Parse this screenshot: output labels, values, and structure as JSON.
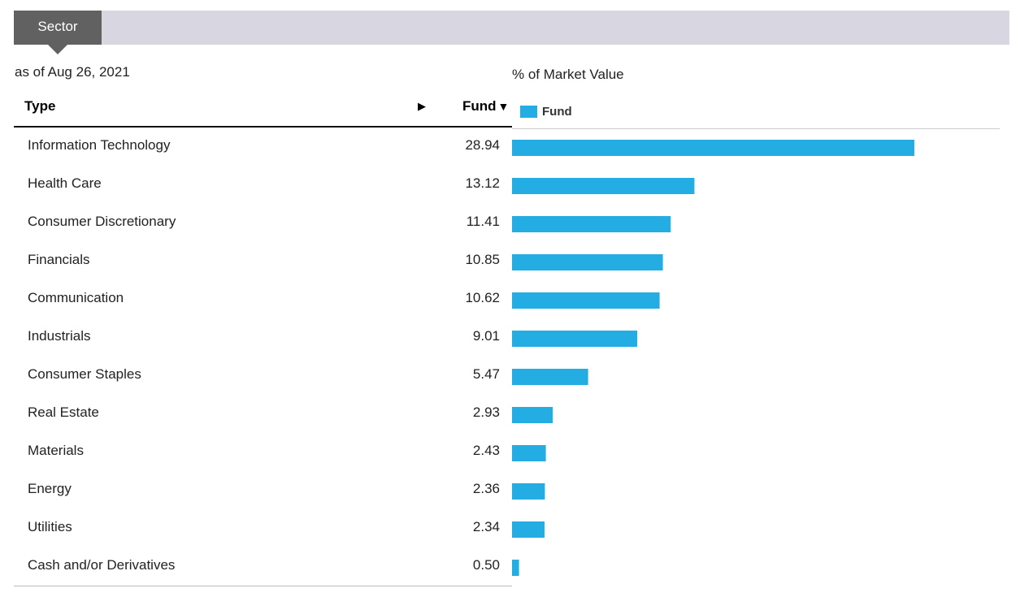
{
  "tab": {
    "label": "Sector"
  },
  "as_of": "as of Aug 26, 2021",
  "chart_label": "% of Market Value",
  "table": {
    "col_type": "Type",
    "col_expand_icon": "▶",
    "col_fund": "Fund",
    "col_fund_sort_icon": "▼"
  },
  "legend": {
    "label": "Fund"
  },
  "colors": {
    "bar": "#23ade3",
    "tab": "#616161",
    "tabbar": "#d8d6e0"
  },
  "chart_data": {
    "type": "bar",
    "orientation": "horizontal",
    "title": "% of Market Value",
    "series": [
      {
        "name": "Fund"
      }
    ],
    "categories": [
      "Information Technology",
      "Health Care",
      "Consumer Discretionary",
      "Financials",
      "Communication",
      "Industrials",
      "Consumer Staples",
      "Real Estate",
      "Materials",
      "Energy",
      "Utilities",
      "Cash and/or Derivatives"
    ],
    "values": [
      28.94,
      13.12,
      11.41,
      10.85,
      10.62,
      9.01,
      5.47,
      2.93,
      2.43,
      2.36,
      2.34,
      0.5
    ],
    "value_labels": [
      "28.94",
      "13.12",
      "11.41",
      "10.85",
      "10.62",
      "9.01",
      "5.47",
      "2.93",
      "2.43",
      "2.36",
      "2.34",
      "0.50"
    ]
  }
}
